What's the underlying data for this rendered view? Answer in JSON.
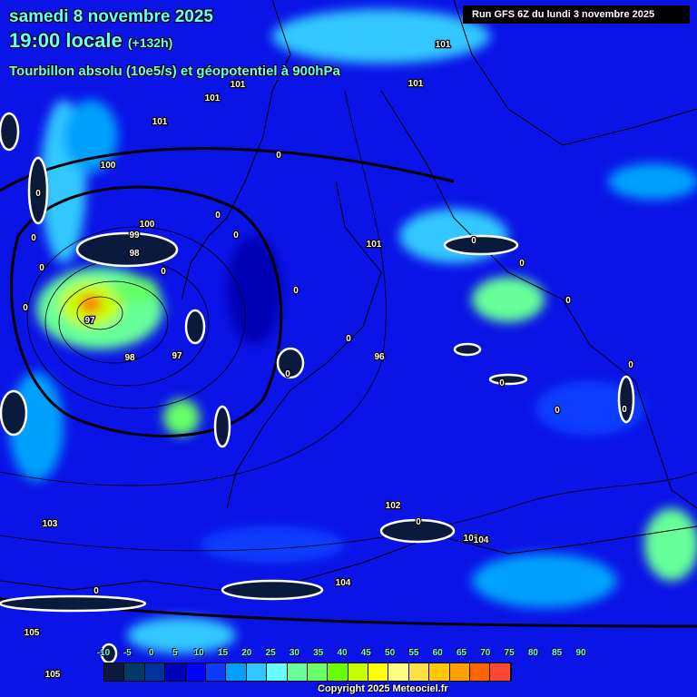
{
  "header": {
    "date": "samedi 8 novembre 2025",
    "time": "19:00 locale",
    "lead": "(+132h)",
    "parameter": "Tourbillon absolu (10e5/s) et géopotentiel à 900hPa",
    "run": "Run GFS 6Z du lundi 3 novembre 2025"
  },
  "legend": {
    "labels": [
      "-10",
      "-5",
      "0",
      "5",
      "10",
      "15",
      "20",
      "25",
      "30",
      "35",
      "40",
      "45",
      "50",
      "55",
      "60",
      "65",
      "70",
      "75",
      "80",
      "85",
      "90"
    ],
    "colors": [
      "#0a1a3c",
      "#003a66",
      "#003399",
      "#0000b4",
      "#0000ff",
      "#0a3cff",
      "#00a0ff",
      "#32c8ff",
      "#66ffff",
      "#66ff99",
      "#66ff66",
      "#66ff00",
      "#c8ff00",
      "#ffff00",
      "#ffff80",
      "#ffe040",
      "#ffc800",
      "#ffa000",
      "#ff6400",
      "#ff4632",
      "#ff3200"
    ]
  },
  "map": {
    "geopotential_labels": [
      "101",
      "101",
      "101",
      "101",
      "101",
      "101",
      "100",
      "100",
      "99",
      "98",
      "98",
      "97",
      "97",
      "96",
      "102",
      "103",
      "103",
      "104",
      "104",
      "105",
      "105"
    ],
    "vorticity_labels": [
      "0",
      "0",
      "0",
      "0",
      "0",
      "0",
      "0",
      "0",
      "0",
      "0",
      "0",
      "0",
      "0",
      "0",
      "0",
      "0",
      "0",
      "0",
      "0",
      "0"
    ]
  },
  "copyright": "Copyright 2025 Meteociel.fr"
}
